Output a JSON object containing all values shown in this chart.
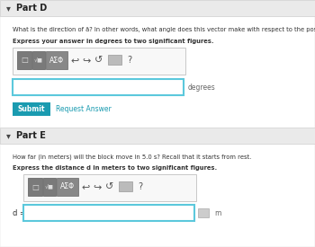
{
  "bg_color": "#f0f0f0",
  "white": "#ffffff",
  "blue_border": "#5bc8dc",
  "dark_text": "#333333",
  "medium_text": "#666666",
  "btn_blue": "#1a9bb0",
  "link_blue": "#1a9bb0",
  "part_d_title": "Part D",
  "part_e_title": "Part E",
  "part_d_q1": "What is the direction of ā? In other words, what angle does this vector make with respect to the positive x axis?",
  "part_d_instr": "Express your answer in degrees to two significant figures.",
  "part_e_q1": "How far (in meters) will the block move in 5.0 s? Recall that it starts from rest.",
  "part_e_instr": "Express the distance d in meters to two significant figures.",
  "degrees_label": "degrees",
  "m_label": "m",
  "d_label": "d =",
  "submit_text": "Submit",
  "request_answer_text": "Request Answer"
}
